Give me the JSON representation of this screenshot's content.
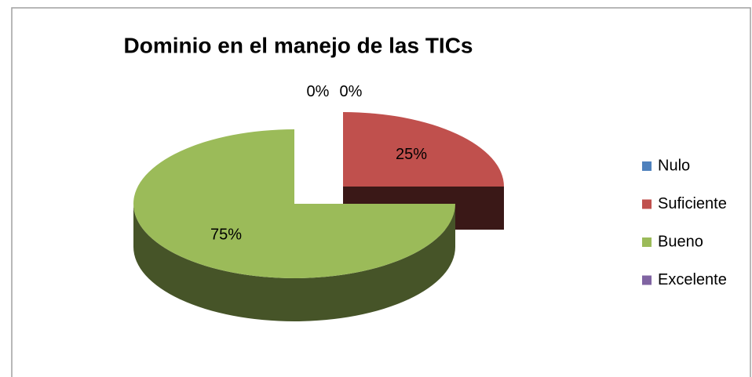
{
  "chart_data": {
    "type": "pie",
    "title": "Dominio en el manejo de las TICs",
    "categories": [
      "Nulo",
      "Suficiente",
      "Bueno",
      "Excelente"
    ],
    "values": [
      0,
      25,
      75,
      0
    ],
    "value_labels": [
      "0%",
      "25%",
      "75%",
      "0%"
    ],
    "colors": [
      "#4f81bd",
      "#c0504d",
      "#9bbb59",
      "#8064a2"
    ],
    "legend": "right"
  }
}
